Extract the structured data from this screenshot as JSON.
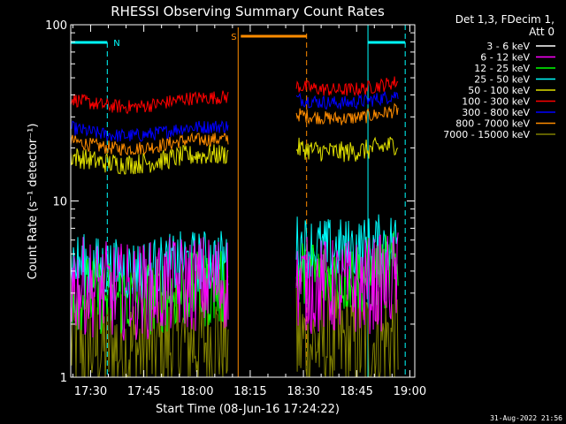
{
  "chart_data": {
    "type": "line",
    "title": "RHESSI Observing Summary Count Rates",
    "xlabel": "Start Time (08-Jun-16 17:24:22)",
    "ylabel": "Count Rate (s⁻¹ detector⁻¹)",
    "yscale": "log",
    "ylim": [
      1,
      100
    ],
    "xlim_minutes": [
      0,
      97
    ],
    "x_ticks": [
      {
        "label": "17:30",
        "minute": 5.6
      },
      {
        "label": "17:45",
        "minute": 20.6
      },
      {
        "label": "18:00",
        "minute": 35.6
      },
      {
        "label": "18:15",
        "minute": 50.6
      },
      {
        "label": "18:30",
        "minute": 65.6
      },
      {
        "label": "18:45",
        "minute": 80.6
      },
      {
        "label": "19:00",
        "minute": 95.6
      }
    ],
    "y_ticks": [
      {
        "label": "1",
        "value": 1
      },
      {
        "label": "10",
        "value": 10
      },
      {
        "label": "100",
        "value": 100
      }
    ],
    "legend_header": [
      "Det 1,3, FDecim 1,",
      "Att 0"
    ],
    "series": [
      {
        "name": "3 - 6 keV",
        "color": "#ffffff",
        "levels": []
      },
      {
        "name": "6 - 12 keV",
        "color": "#ff00ff",
        "levels": [
          3.4,
          3.4
        ],
        "noise": 0.28
      },
      {
        "name": "12 - 25 keV",
        "color": "#00ff00",
        "levels": [
          3.1,
          3.9
        ],
        "noise": 0.22
      },
      {
        "name": "25 - 50 keV",
        "color": "#00ffff",
        "levels": [
          4.5,
          5.6
        ],
        "noise": 0.18
      },
      {
        "name": "50 - 100 keV",
        "color": "#e0e000",
        "levels": [
          18,
          20
        ],
        "noise": 0.06
      },
      {
        "name": "100 - 300 keV",
        "color": "#ff0000",
        "levels": [
          38,
          45
        ],
        "noise": 0.04
      },
      {
        "name": "300 - 800 keV",
        "color": "#0000ff",
        "levels": [
          26,
          38
        ],
        "noise": 0.04
      },
      {
        "name": "800 - 7000 keV",
        "color": "#ff8c00",
        "levels": [
          22,
          31
        ],
        "noise": 0.04
      },
      {
        "name": "7000 - 15000 keV",
        "color": "#808000",
        "levels": [
          1.6,
          1.6
        ],
        "noise": 0.35
      }
    ],
    "data_segments_minutes": [
      [
        0,
        44.5
      ],
      [
        63.6,
        92.5
      ]
    ],
    "annotations": {
      "night_label": "N",
      "saa_label": "S",
      "night_bars_minutes": [
        [
          0,
          10.3
        ],
        [
          83.8,
          94.3
        ]
      ],
      "saa_bar_minutes": [
        47.2,
        66.5
      ],
      "night_line_color": "#00ffff",
      "saa_line_color": "#ff8c00"
    },
    "colors": {
      "background": "#000000",
      "axes": "#ffffff"
    },
    "timestamp": "31-Aug-2022 21:56"
  }
}
